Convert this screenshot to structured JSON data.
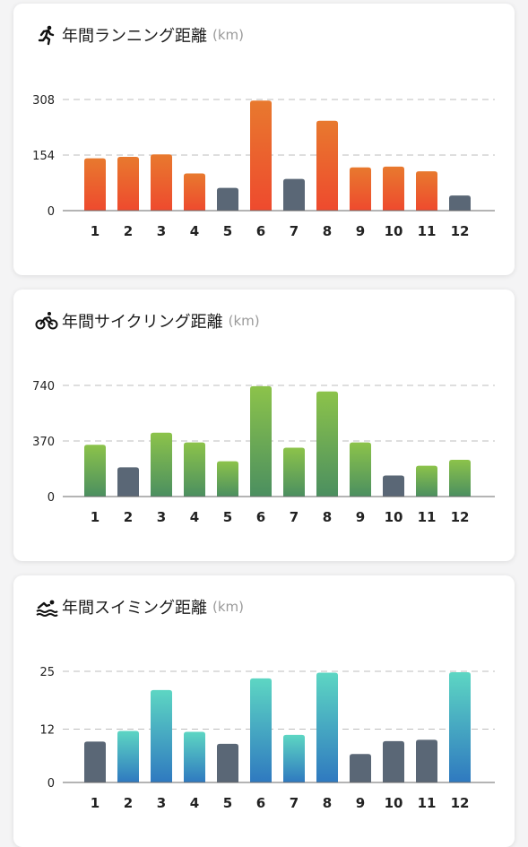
{
  "charts": [
    {
      "title": "年間ランニング距離",
      "unit": "(km)",
      "icon": "running-icon",
      "gradient": [
        "#e8792e",
        "#ee4a2e"
      ],
      "inactive_color": "#5a6776",
      "highlight_months": [
        1,
        2,
        3,
        4,
        6,
        8,
        9,
        10,
        11
      ],
      "y_ticks": [
        "308",
        "154",
        "0"
      ],
      "ylim": [
        0,
        308
      ],
      "months": [
        "1",
        "2",
        "3",
        "4",
        "5",
        "6",
        "7",
        "8",
        "9",
        "10",
        "11",
        "12"
      ],
      "values": [
        145,
        149,
        156,
        103,
        63,
        305,
        88,
        249,
        120,
        122,
        109,
        42
      ]
    },
    {
      "title": "年間サイクリング距離",
      "unit": "(km)",
      "icon": "bicycle-icon",
      "gradient": [
        "#8cc34a",
        "#4b8f60"
      ],
      "inactive_color": "#5a6776",
      "highlight_months": [
        1,
        3,
        4,
        5,
        6,
        7,
        8,
        9,
        11,
        12
      ],
      "y_ticks": [
        "740",
        "370",
        "0"
      ],
      "ylim": [
        0,
        740
      ],
      "months": [
        "1",
        "2",
        "3",
        "4",
        "5",
        "6",
        "7",
        "8",
        "9",
        "10",
        "11",
        "12"
      ],
      "values": [
        345,
        195,
        425,
        360,
        235,
        735,
        325,
        700,
        360,
        140,
        205,
        245
      ]
    },
    {
      "title": "年間スイミング距離",
      "unit": "(km)",
      "icon": "swimming-icon",
      "gradient": [
        "#5dd6c3",
        "#2f79c0"
      ],
      "inactive_color": "#5a6776",
      "highlight_months": [
        2,
        3,
        4,
        6,
        7,
        8,
        12
      ],
      "y_ticks": [
        "25",
        "12",
        "0"
      ],
      "ylim": [
        0,
        25
      ],
      "months": [
        "1",
        "2",
        "3",
        "4",
        "5",
        "6",
        "7",
        "8",
        "9",
        "10",
        "11",
        "12"
      ],
      "values": [
        9.2,
        11.6,
        20.8,
        11.4,
        8.7,
        23.4,
        10.7,
        24.7,
        6.4,
        9.3,
        9.6,
        24.8
      ]
    }
  ],
  "chart_data": [
    {
      "type": "bar",
      "title": "年間ランニング距離",
      "ylabel": "(km)",
      "categories": [
        "1",
        "2",
        "3",
        "4",
        "5",
        "6",
        "7",
        "8",
        "9",
        "10",
        "11",
        "12"
      ],
      "values": [
        145,
        149,
        156,
        103,
        63,
        305,
        88,
        249,
        120,
        122,
        109,
        42
      ],
      "ylim": [
        0,
        308
      ],
      "grid": true
    },
    {
      "type": "bar",
      "title": "年間サイクリング距離",
      "ylabel": "(km)",
      "categories": [
        "1",
        "2",
        "3",
        "4",
        "5",
        "6",
        "7",
        "8",
        "9",
        "10",
        "11",
        "12"
      ],
      "values": [
        345,
        195,
        425,
        360,
        235,
        735,
        325,
        700,
        360,
        140,
        205,
        245
      ],
      "ylim": [
        0,
        740
      ],
      "grid": true
    },
    {
      "type": "bar",
      "title": "年間スイミング距離",
      "ylabel": "(km)",
      "categories": [
        "1",
        "2",
        "3",
        "4",
        "5",
        "6",
        "7",
        "8",
        "9",
        "10",
        "11",
        "12"
      ],
      "values": [
        9.2,
        11.6,
        20.8,
        11.4,
        8.7,
        23.4,
        10.7,
        24.7,
        6.4,
        9.3,
        9.6,
        24.8
      ],
      "ylim": [
        0,
        25
      ],
      "grid": true
    }
  ]
}
